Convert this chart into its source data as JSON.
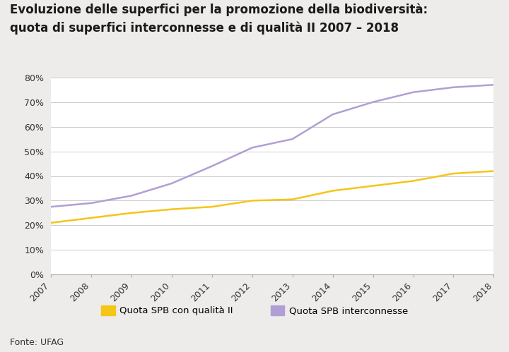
{
  "title_line1": "Evoluzione delle superfici per la promozione della biodiversità:",
  "title_line2": "quota di superfici interconnesse e di qualità II 2007 – 2018",
  "years": [
    2007,
    2008,
    2009,
    2010,
    2011,
    2012,
    2013,
    2014,
    2015,
    2016,
    2017,
    2018
  ],
  "quota_qualita_II": [
    21,
    23,
    25,
    26.5,
    27.5,
    30,
    30.5,
    34,
    36,
    38,
    41,
    42
  ],
  "quota_interconnesse": [
    27.5,
    29,
    32,
    37,
    44,
    51.5,
    55,
    65,
    70,
    74,
    76,
    77
  ],
  "color_qualita": "#f5c518",
  "color_interconnesse": "#b09fd4",
  "background_color": "#edecea",
  "plot_bg_color": "#ffffff",
  "ylim": [
    0,
    80
  ],
  "ytick_step": 10,
  "source": "Fonte: UFAG",
  "legend_qualita": "Quota SPB con qualità II",
  "legend_interconnesse": "Quota SPB interconnesse",
  "title_fontsize": 12,
  "axis_fontsize": 9,
  "legend_fontsize": 9.5,
  "source_fontsize": 9,
  "line_width": 1.8
}
